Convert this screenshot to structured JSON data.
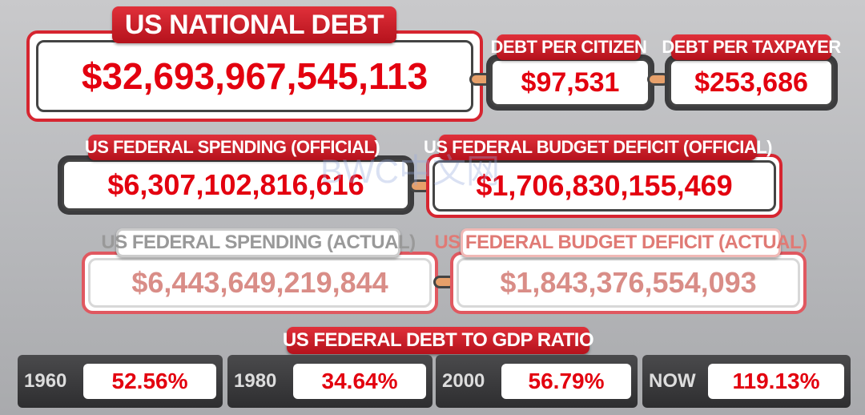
{
  "national_debt": {
    "label": "US NATIONAL DEBT",
    "value": "$32,693,967,545,113"
  },
  "per_citizen": {
    "label": "DEBT PER CITIZEN",
    "value": "$97,531"
  },
  "per_taxpayer": {
    "label": "DEBT PER TAXPAYER",
    "value": "$253,686"
  },
  "spending_official": {
    "label": "US FEDERAL SPENDING (OFFICIAL)",
    "value": "$6,307,102,816,616"
  },
  "deficit_official": {
    "label": "US FEDERAL BUDGET DEFICIT (OFFICIAL)",
    "value": "$1,706,830,155,469"
  },
  "spending_actual": {
    "label": "US FEDERAL SPENDING (ACTUAL)",
    "value": "$6,443,649,219,844"
  },
  "deficit_actual": {
    "label": "US FEDERAL BUDGET DEFICIT (ACTUAL)",
    "value": "$1,843,376,554,093"
  },
  "gdp_ratio": {
    "title": "US FEDERAL DEBT TO GDP RATIO",
    "items": [
      {
        "year": "1960",
        "value": "52.56%"
      },
      {
        "year": "1980",
        "value": "34.64%"
      },
      {
        "year": "2000",
        "value": "56.79%"
      },
      {
        "year": "NOW",
        "value": "119.13%"
      }
    ]
  },
  "watermark": "BWC中文网"
}
